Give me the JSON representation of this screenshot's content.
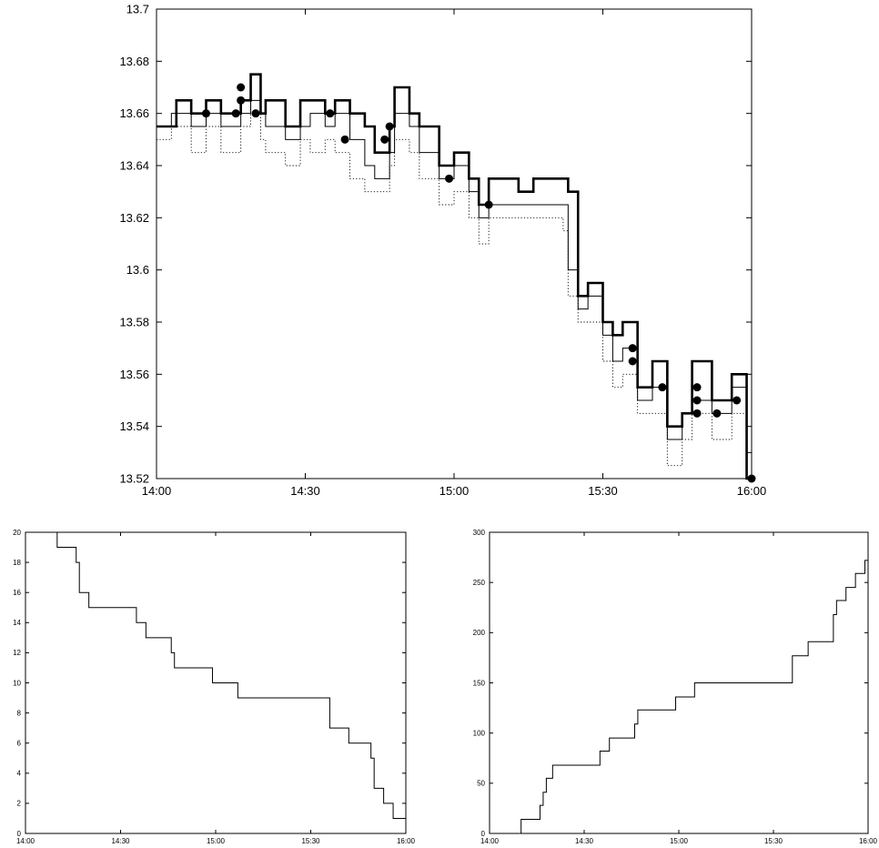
{
  "chart_data": [
    {
      "type": "line",
      "title": "",
      "xlabel": "",
      "ylabel": "",
      "xlim": [
        "14:00",
        "16:00"
      ],
      "ylim": [
        13.52,
        13.7
      ],
      "grid": false,
      "legend": "none",
      "x_ticks": [
        "14:00",
        "14:30",
        "15:00",
        "15:30",
        "16:00"
      ],
      "y_ticks": [
        "13.52",
        "13.54",
        "13.56",
        "13.58",
        "13.6",
        "13.62",
        "13.64",
        "13.66",
        "13.68",
        "13.7"
      ],
      "series": [
        {
          "style": "step",
          "line": "thick",
          "color": "#000000",
          "points": [
            [
              "14:00",
              13.655
            ],
            [
              "14:04",
              13.665
            ],
            [
              "14:07",
              13.66
            ],
            [
              "14:10",
              13.665
            ],
            [
              "14:13",
              13.66
            ],
            [
              "14:17",
              13.665
            ],
            [
              "14:19",
              13.675
            ],
            [
              "14:21",
              13.66
            ],
            [
              "14:22",
              13.665
            ],
            [
              "14:26",
              13.655
            ],
            [
              "14:29",
              13.665
            ],
            [
              "14:34",
              13.66
            ],
            [
              "14:36",
              13.665
            ],
            [
              "14:39",
              13.66
            ],
            [
              "14:42",
              13.655
            ],
            [
              "14:44",
              13.645
            ],
            [
              "14:47",
              13.655
            ],
            [
              "14:48",
              13.67
            ],
            [
              "14:51",
              13.66
            ],
            [
              "14:53",
              13.655
            ],
            [
              "14:57",
              13.64
            ],
            [
              "15:00",
              13.645
            ],
            [
              "15:03",
              13.635
            ],
            [
              "15:05",
              13.625
            ],
            [
              "15:07",
              13.635
            ],
            [
              "15:13",
              13.63
            ],
            [
              "15:16",
              13.635
            ],
            [
              "15:23",
              13.63
            ],
            [
              "15:25",
              13.59
            ],
            [
              "15:27",
              13.595
            ],
            [
              "15:30",
              13.58
            ],
            [
              "15:32",
              13.575
            ],
            [
              "15:34",
              13.58
            ],
            [
              "15:37",
              13.555
            ],
            [
              "15:40",
              13.565
            ],
            [
              "15:43",
              13.54
            ],
            [
              "15:46",
              13.545
            ],
            [
              "15:48",
              13.565
            ],
            [
              "15:52",
              13.55
            ],
            [
              "15:56",
              13.56
            ],
            [
              "15:59",
              13.52
            ],
            [
              "16:00",
              13.52
            ]
          ]
        },
        {
          "style": "step",
          "line": "thin",
          "color": "#000000",
          "points": [
            [
              "14:00",
              13.655
            ],
            [
              "14:03",
              13.66
            ],
            [
              "14:07",
              13.655
            ],
            [
              "14:10",
              13.66
            ],
            [
              "14:13",
              13.655
            ],
            [
              "14:17",
              13.66
            ],
            [
              "14:19",
              13.665
            ],
            [
              "14:21",
              13.66
            ],
            [
              "14:22",
              13.655
            ],
            [
              "14:26",
              13.65
            ],
            [
              "14:29",
              13.655
            ],
            [
              "14:31",
              13.66
            ],
            [
              "14:34",
              13.655
            ],
            [
              "14:36",
              13.66
            ],
            [
              "14:39",
              13.65
            ],
            [
              "14:42",
              13.64
            ],
            [
              "14:44",
              13.635
            ],
            [
              "14:47",
              13.645
            ],
            [
              "14:48",
              13.66
            ],
            [
              "14:51",
              13.655
            ],
            [
              "14:53",
              13.645
            ],
            [
              "14:57",
              13.635
            ],
            [
              "15:00",
              13.64
            ],
            [
              "15:03",
              13.63
            ],
            [
              "15:05",
              13.62
            ],
            [
              "15:07",
              13.625
            ],
            [
              "15:10",
              13.625
            ],
            [
              "15:13",
              13.625
            ],
            [
              "15:16",
              13.625
            ],
            [
              "15:22",
              13.625
            ],
            [
              "15:23",
              13.6
            ],
            [
              "15:25",
              13.585
            ],
            [
              "15:27",
              13.59
            ],
            [
              "15:30",
              13.575
            ],
            [
              "15:32",
              13.565
            ],
            [
              "15:34",
              13.57
            ],
            [
              "15:37",
              13.55
            ],
            [
              "15:40",
              13.555
            ],
            [
              "15:43",
              13.535
            ],
            [
              "15:46",
              13.545
            ],
            [
              "15:48",
              13.55
            ],
            [
              "15:52",
              13.545
            ],
            [
              "15:56",
              13.555
            ],
            [
              "15:59",
              13.53
            ],
            [
              "16:00",
              13.52
            ]
          ]
        },
        {
          "style": "step",
          "line": "dotted",
          "color": "#000000",
          "points": [
            [
              "14:00",
              13.65
            ],
            [
              "14:03",
              13.655
            ],
            [
              "14:07",
              13.645
            ],
            [
              "14:10",
              13.655
            ],
            [
              "14:13",
              13.645
            ],
            [
              "14:17",
              13.655
            ],
            [
              "14:19",
              13.66
            ],
            [
              "14:21",
              13.65
            ],
            [
              "14:22",
              13.645
            ],
            [
              "14:26",
              13.64
            ],
            [
              "14:29",
              13.65
            ],
            [
              "14:31",
              13.645
            ],
            [
              "14:34",
              13.65
            ],
            [
              "14:36",
              13.645
            ],
            [
              "14:39",
              13.635
            ],
            [
              "14:42",
              13.63
            ],
            [
              "14:47",
              13.64
            ],
            [
              "14:48",
              13.65
            ],
            [
              "14:51",
              13.645
            ],
            [
              "14:53",
              13.635
            ],
            [
              "14:57",
              13.625
            ],
            [
              "15:00",
              13.63
            ],
            [
              "15:03",
              13.62
            ],
            [
              "15:05",
              13.61
            ],
            [
              "15:07",
              13.62
            ],
            [
              "15:13",
              13.62
            ],
            [
              "15:16",
              13.62
            ],
            [
              "15:22",
              13.615
            ],
            [
              "15:23",
              13.59
            ],
            [
              "15:25",
              13.58
            ],
            [
              "15:27",
              13.58
            ],
            [
              "15:30",
              13.565
            ],
            [
              "15:32",
              13.555
            ],
            [
              "15:34",
              13.56
            ],
            [
              "15:37",
              13.545
            ],
            [
              "15:40",
              13.545
            ],
            [
              "15:43",
              13.525
            ],
            [
              "15:46",
              13.535
            ],
            [
              "15:48",
              13.545
            ],
            [
              "15:52",
              13.535
            ],
            [
              "15:56",
              13.545
            ],
            [
              "15:59",
              13.52
            ],
            [
              "16:00",
              13.52
            ]
          ]
        },
        {
          "style": "markers",
          "marker": "filled-circle",
          "color": "#000000",
          "points": [
            [
              "14:10",
              13.66
            ],
            [
              "14:16",
              13.66
            ],
            [
              "14:17",
              13.665
            ],
            [
              "14:17",
              13.67
            ],
            [
              "14:20",
              13.66
            ],
            [
              "14:35",
              13.66
            ],
            [
              "14:38",
              13.65
            ],
            [
              "14:46",
              13.65
            ],
            [
              "14:47",
              13.655
            ],
            [
              "14:59",
              13.635
            ],
            [
              "15:07",
              13.625
            ],
            [
              "15:36",
              13.565
            ],
            [
              "15:36",
              13.57
            ],
            [
              "15:42",
              13.555
            ],
            [
              "15:49",
              13.545
            ],
            [
              "15:49",
              13.55
            ],
            [
              "15:49",
              13.555
            ],
            [
              "15:53",
              13.545
            ],
            [
              "15:57",
              13.55
            ],
            [
              "16:00",
              13.52
            ]
          ]
        }
      ]
    },
    {
      "type": "line",
      "title": "",
      "xlabel": "",
      "ylabel": "",
      "xlim": [
        "14:00",
        "16:00"
      ],
      "ylim": [
        0,
        20
      ],
      "grid": false,
      "legend": "none",
      "x_ticks": [
        "14:00",
        "14:30",
        "15:00",
        "15:30",
        "16:00"
      ],
      "y_ticks": [
        "0",
        "2",
        "4",
        "6",
        "8",
        "10",
        "12",
        "14",
        "16",
        "18",
        "20"
      ],
      "series": [
        {
          "style": "step",
          "line": "thin",
          "color": "#000000",
          "points": [
            [
              "14:00",
              20
            ],
            [
              "14:10",
              20
            ],
            [
              "14:10",
              19
            ],
            [
              "14:16",
              19
            ],
            [
              "14:16",
              18
            ],
            [
              "14:17",
              18
            ],
            [
              "14:17",
              16
            ],
            [
              "14:20",
              16
            ],
            [
              "14:20",
              15
            ],
            [
              "14:35",
              15
            ],
            [
              "14:35",
              14
            ],
            [
              "14:38",
              14
            ],
            [
              "14:38",
              13
            ],
            [
              "14:46",
              13
            ],
            [
              "14:46",
              12
            ],
            [
              "14:47",
              12
            ],
            [
              "14:47",
              11
            ],
            [
              "14:59",
              11
            ],
            [
              "14:59",
              10
            ],
            [
              "15:07",
              10
            ],
            [
              "15:07",
              9
            ],
            [
              "15:36",
              9
            ],
            [
              "15:36",
              7
            ],
            [
              "15:42",
              7
            ],
            [
              "15:42",
              6
            ],
            [
              "15:49",
              6
            ],
            [
              "15:49",
              5
            ],
            [
              "15:50",
              5
            ],
            [
              "15:50",
              3
            ],
            [
              "15:53",
              3
            ],
            [
              "15:53",
              2
            ],
            [
              "15:56",
              2
            ],
            [
              "15:56",
              1
            ],
            [
              "16:00",
              1
            ],
            [
              "16:00",
              0
            ]
          ]
        }
      ]
    },
    {
      "type": "line",
      "title": "",
      "xlabel": "",
      "ylabel": "",
      "xlim": [
        "14:00",
        "16:00"
      ],
      "ylim": [
        0,
        300
      ],
      "grid": false,
      "legend": "none",
      "x_ticks": [
        "14:00",
        "14:30",
        "15:00",
        "15:30",
        "16:00"
      ],
      "y_ticks": [
        "0",
        "50",
        "100",
        "150",
        "200",
        "250",
        "300"
      ],
      "series": [
        {
          "style": "step",
          "line": "thin",
          "color": "#000000",
          "points": [
            [
              "14:00",
              0
            ],
            [
              "14:10",
              0
            ],
            [
              "14:10",
              14
            ],
            [
              "14:16",
              14
            ],
            [
              "14:16",
              28
            ],
            [
              "14:17",
              28
            ],
            [
              "14:17",
              41
            ],
            [
              "14:18",
              41
            ],
            [
              "14:18",
              55
            ],
            [
              "14:20",
              55
            ],
            [
              "14:20",
              68
            ],
            [
              "14:35",
              68
            ],
            [
              "14:35",
              82
            ],
            [
              "14:38",
              82
            ],
            [
              "14:38",
              95
            ],
            [
              "14:46",
              95
            ],
            [
              "14:46",
              109
            ],
            [
              "14:47",
              109
            ],
            [
              "14:47",
              123
            ],
            [
              "14:59",
              123
            ],
            [
              "14:59",
              136
            ],
            [
              "15:05",
              136
            ],
            [
              "15:05",
              150
            ],
            [
              "15:36",
              150
            ],
            [
              "15:36",
              177
            ],
            [
              "15:41",
              177
            ],
            [
              "15:41",
              191
            ],
            [
              "15:49",
              191
            ],
            [
              "15:49",
              218
            ],
            [
              "15:50",
              218
            ],
            [
              "15:50",
              232
            ],
            [
              "15:53",
              232
            ],
            [
              "15:53",
              245
            ],
            [
              "15:56",
              245
            ],
            [
              "15:56",
              259
            ],
            [
              "15:59",
              259
            ],
            [
              "15:59",
              272
            ],
            [
              "16:00",
              272
            ]
          ]
        }
      ]
    }
  ]
}
